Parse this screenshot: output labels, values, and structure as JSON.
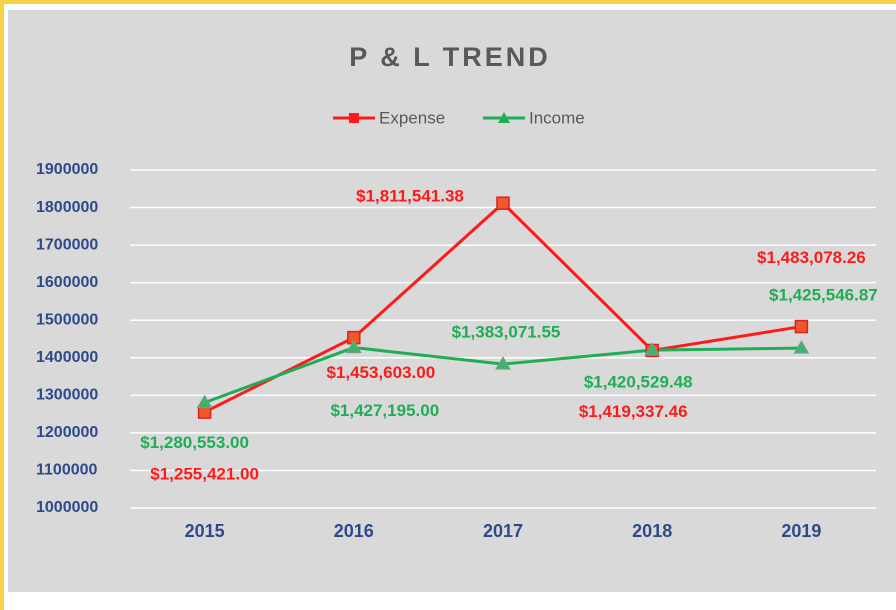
{
  "chart_data": {
    "type": "line",
    "title": "P & L TREND",
    "categories": [
      "2015",
      "2016",
      "2017",
      "2018",
      "2019"
    ],
    "series": [
      {
        "name": "Expense",
        "color": "#ff1a1a",
        "values": [
          1255421.0,
          1453603.0,
          1811541.38,
          1419337.46,
          1483078.26
        ],
        "value_labels": [
          "$1,255,421.00",
          "$1,453,603.00",
          "$1,811,541.38",
          "$1,419,337.46",
          "$1,483,078.26"
        ]
      },
      {
        "name": "Income",
        "color": "#1fae55",
        "values": [
          1280553.0,
          1427195.0,
          1383071.55,
          1420529.48,
          1425546.87
        ],
        "value_labels": [
          "$1,280,553.00",
          "$1,427,195.00",
          "$1,383,071.55",
          "$1,420,529.48",
          "$1,425,546.87"
        ]
      }
    ],
    "ylim": [
      1000000,
      1900000
    ],
    "yticks": [
      1000000,
      1100000,
      1200000,
      1300000,
      1400000,
      1500000,
      1600000,
      1700000,
      1800000,
      1900000
    ],
    "grid": true,
    "legend": "top"
  }
}
